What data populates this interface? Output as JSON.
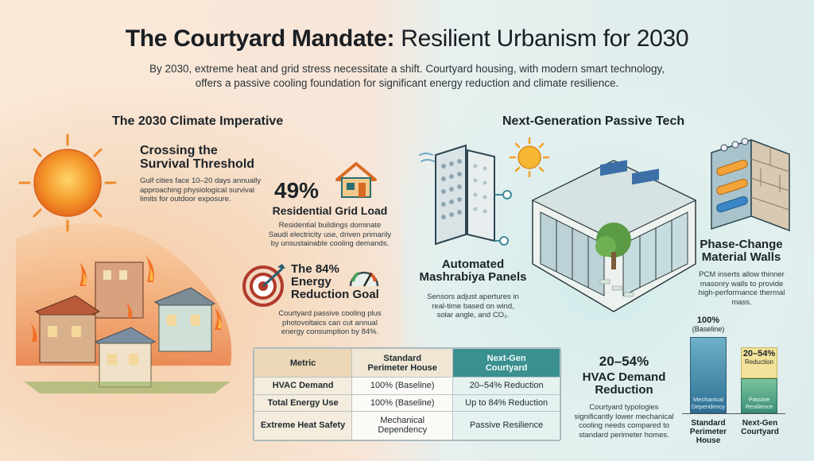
{
  "header": {
    "title_bold": "The Courtyard Mandate:",
    "title_rest": "Resilient Urbanism for 2030",
    "subtitle_line1": "By 2030, extreme heat and grid stress necessitate a shift. Courtyard housing, with modern smart technology,",
    "subtitle_line2": "offers a passive cooling foundation for significant energy reduction and climate resilience."
  },
  "left": {
    "heading": "The 2030 Climate Imperative",
    "survival": {
      "title_line1": "Crossing the",
      "title_line2": "Survival Threshold",
      "text_line1": "Gulf cities face 10–20 days annually",
      "text_line2": "approaching physiological survival",
      "text_line3": "limits for outdoor exposure."
    },
    "grid": {
      "stat": "49%",
      "title": "Residential Grid Load",
      "text_line1": "Residential buildings dominate",
      "text_line2": "Saudi electricity use, driven primarily",
      "text_line3": "by unsustainable cooling demands."
    },
    "goal": {
      "title_line1": "The 84%",
      "title_line2": "Energy",
      "title_line3": "Reduction Goal",
      "text_line1": "Courtyard passive cooling plus",
      "text_line2": "photovoltaics can cut annual",
      "text_line3": "energy consumption by 84%."
    }
  },
  "right": {
    "heading": "Next-Generation Passive Tech",
    "mashrabiya": {
      "title_line1": "Automated",
      "title_line2": "Mashrabiya Panels",
      "text_line1": "Sensors adjust apertures in",
      "text_line2": "real-time based on wind,",
      "text_line3": "solar angle, and CO₂."
    },
    "pcm": {
      "title_line1": "Phase-Change",
      "title_line2": "Material Walls",
      "text_line1": "PCM inserts allow thinner",
      "text_line2": "masonry walls to provide",
      "text_line3": "high-performance thermal",
      "text_line4": "mass."
    },
    "hvac": {
      "stat": "20–54%",
      "title_line1": "HVAC Demand",
      "title_line2": "Reduction",
      "text_line1": "Courtyard typologies",
      "text_line2": "significantly lower mechanical",
      "text_line3": "cooling needs compared to",
      "text_line4": "standard perimeter homes."
    }
  },
  "table": {
    "headers": [
      "Metric",
      "Standard Perimeter House",
      "Next-Gen Courtyard"
    ],
    "header_std_line1": "Standard",
    "header_std_line2": "Perimeter House",
    "header_ng_line1": "Next-Gen",
    "header_ng_line2": "Courtyard",
    "rows": [
      {
        "metric": "HVAC Demand",
        "standard": "100% (Baseline)",
        "nextgen": "20–54% Reduction"
      },
      {
        "metric": "Total Energy Use",
        "standard": "100% (Baseline)",
        "nextgen": "Up to 84% Reduction"
      },
      {
        "metric": "Extreme Heat Safety",
        "standard": "Mechanical Dependency",
        "nextgen": "Passive Resilience"
      }
    ]
  },
  "bars": {
    "std_value_label": "100%",
    "std_value_sub": "(Baseline)",
    "std_inner_line1": "Mechanical",
    "std_inner_line2": "Dependency",
    "std_cat_line1": "Standard",
    "std_cat_line2": "Perimeter",
    "std_cat_line3": "House",
    "ng_value_label": "20–54%",
    "ng_value_sub": "Reduction",
    "ng_inner_line1": "Passive",
    "ng_inner_line2": "Resilience",
    "ng_cat_line1": "Next-Gen",
    "ng_cat_line2": "Courtyard",
    "std_level": 1.0,
    "ng_level": 0.46
  },
  "colors": {
    "accent_teal": "#3a8f8f",
    "warm_orange": "#f08a3a",
    "sun_yellow": "#f7b733"
  },
  "icons": [
    "sun-icon",
    "house-icon",
    "target-icon",
    "gauge-icon",
    "burning-houses-illustration",
    "mashrabiya-panels-illustration",
    "courtyard-house-illustration",
    "pcm-wall-illustration"
  ]
}
